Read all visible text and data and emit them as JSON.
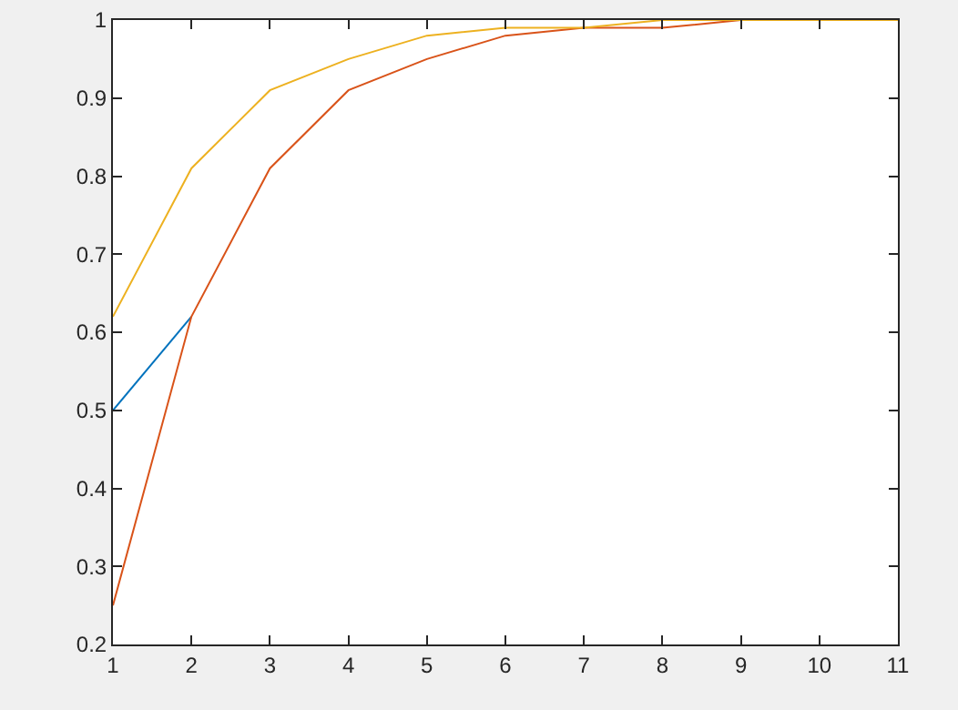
{
  "chart_data": {
    "type": "line",
    "x": [
      1,
      2,
      3,
      4,
      5,
      6,
      7,
      8,
      9,
      10,
      11
    ],
    "series": [
      {
        "color": "#0072bd",
        "values": [
          0.5,
          0.62,
          null,
          null,
          null,
          null,
          null,
          null,
          null,
          null,
          null
        ]
      },
      {
        "color": "#d95319",
        "values": [
          0.25,
          0.62,
          0.81,
          0.91,
          0.95,
          0.98,
          0.99,
          0.99,
          1,
          1,
          1
        ]
      },
      {
        "color": "#edb120",
        "values": [
          0.62,
          0.81,
          0.91,
          0.95,
          0.98,
          0.99,
          0.99,
          1,
          1,
          1,
          1
        ]
      }
    ],
    "xlim": [
      1,
      11
    ],
    "xticks": [
      1,
      2,
      3,
      4,
      5,
      6,
      7,
      8,
      9,
      10,
      11
    ],
    "ylim": [
      0.2,
      1
    ],
    "yticks": [
      0.2,
      0.3,
      0.4,
      0.5,
      0.6,
      0.7,
      0.8,
      0.9,
      1
    ],
    "marker": "none",
    "line_style": "solid"
  }
}
